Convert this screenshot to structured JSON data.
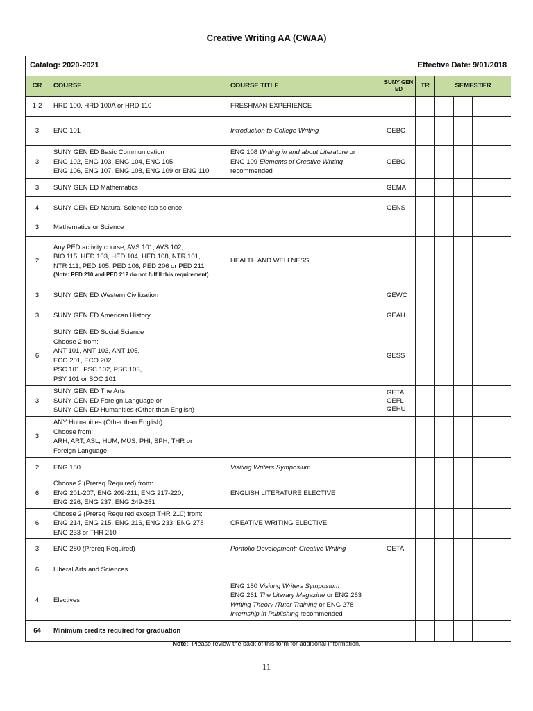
{
  "title": "Creative Writing AA (CWAA)",
  "catalog": "Catalog: 2020-2021",
  "effective_date": "Effective Date: 9/01/2018",
  "header_color": "#c5dba1",
  "columns": {
    "cr": "CR",
    "course": "COURSE",
    "course_title": "COURSE TITLE",
    "gen_ed": "SUNY GEN ED",
    "tr": "TR",
    "semester": "SEMESTER"
  },
  "rows": [
    {
      "cr": "1-2",
      "course": [
        "HRD 100, HRD 100A or HRD 110"
      ],
      "title": [
        [
          {
            "t": "FRESHMAN EXPERIENCE"
          }
        ]
      ],
      "gen_ed": []
    },
    {
      "cr": "3",
      "course": [
        "ENG 101"
      ],
      "title": [
        [
          {
            "t": "Introduction to College Writing",
            "i": true
          }
        ]
      ],
      "gen_ed": [
        "GEBC"
      ]
    },
    {
      "cr": "3",
      "course": [
        "SUNY GEN ED Basic Communication",
        "ENG 102, ENG 103, ENG 104, ENG 105,",
        "ENG 106, ENG 107, ENG 108, ENG 109 or ENG 110"
      ],
      "title": [
        [
          {
            "t": "ENG 108 "
          },
          {
            "t": "Writing in and about Literature",
            "i": true
          },
          {
            "t": " or"
          }
        ],
        [
          {
            "t": "ENG 109 "
          },
          {
            "t": "Elements of Creative Writing",
            "i": true
          }
        ],
        [
          {
            "t": "recommended"
          }
        ]
      ],
      "gen_ed": [
        "GEBC"
      ]
    },
    {
      "cr": "3",
      "course": [
        "SUNY GEN ED Mathematics"
      ],
      "title": [],
      "gen_ed": [
        "GEMA"
      ]
    },
    {
      "cr": "4",
      "course": [
        "SUNY GEN ED Natural Science lab science"
      ],
      "title": [],
      "gen_ed": [
        "GENS"
      ]
    },
    {
      "cr": "3",
      "course": [
        "Mathematics or Science"
      ],
      "title": [],
      "gen_ed": []
    },
    {
      "cr": "2",
      "course": [
        "Any PED activity course, AVS 101, AVS 102,",
        "BIO 115, HED 103, HED 104, HED 108, NTR 101,",
        "NTR 111, PED 105, PED 106, PED 206 or PED 211"
      ],
      "course_note": "(Note: PED 210 and PED 212 do not fulfill this requirement)",
      "title": [
        [
          {
            "t": "HEALTH AND WELLNESS"
          }
        ]
      ],
      "gen_ed": []
    },
    {
      "cr": "3",
      "course": [
        "SUNY GEN ED Western Civilization"
      ],
      "title": [],
      "gen_ed": [
        "GEWC"
      ]
    },
    {
      "cr": "3",
      "course": [
        "SUNY GEN ED American History"
      ],
      "title": [],
      "gen_ed": [
        "GEAH"
      ]
    },
    {
      "cr": "6",
      "course": [
        "SUNY GEN ED Social Science",
        "Choose 2 from:",
        "ANT 101, ANT 103, ANT 105,",
        "ECO 201, ECO 202,",
        "PSC 101, PSC 102, PSC 103,",
        "PSY 101 or SOC 101"
      ],
      "title": [],
      "gen_ed": [
        "GESS"
      ]
    },
    {
      "cr": "3",
      "course": [
        "SUNY GEN ED The Arts,",
        "SUNY GEN ED Foreign Language or",
        "SUNY GEN ED Humanities (Other than English)"
      ],
      "title": [],
      "gen_ed": [
        "GETA",
        "GEFL",
        "GEHU"
      ]
    },
    {
      "cr": "3",
      "course": [
        "ANY Humanities (Other than English)",
        "Choose from:",
        "ARH, ART, ASL, HUM, MUS, PHI, SPH, THR or",
        "Foreign Language"
      ],
      "title": [],
      "gen_ed": []
    },
    {
      "cr": "2",
      "course": [
        "ENG 180"
      ],
      "title": [
        [
          {
            "t": "Visiting Writers Symposium",
            "i": true
          }
        ]
      ],
      "gen_ed": []
    },
    {
      "cr": "6",
      "course": [
        "Choose 2 (Prereq Required) from:",
        "ENG 201-207, ENG 209-211, ENG 217-220,",
        "ENG 226, ENG 237, ENG 249-251"
      ],
      "title": [
        [
          {
            "t": "ENGLISH LITERATURE ELECTIVE"
          }
        ]
      ],
      "gen_ed": []
    },
    {
      "cr": "6",
      "course": [
        "Choose 2 (Prereq Required except THR 210) from:",
        "ENG 214, ENG 215, ENG 216, ENG 233, ENG 278",
        "ENG 233 or THR 210"
      ],
      "title": [
        [
          {
            "t": "CREATIVE WRITING ELECTIVE"
          }
        ]
      ],
      "gen_ed": []
    },
    {
      "cr": "3",
      "course": [
        "ENG 280 (Prereq Required)"
      ],
      "title": [
        [
          {
            "t": "Portfolio Development: Creative Writing",
            "i": true
          }
        ]
      ],
      "gen_ed": [
        "GETA"
      ]
    },
    {
      "cr": "6",
      "course": [
        "Liberal Arts and Sciences"
      ],
      "title": [],
      "gen_ed": []
    },
    {
      "cr": "4",
      "course": [
        "Electives"
      ],
      "title": [
        [
          {
            "t": "ENG 180 "
          },
          {
            "t": "Visiting Writers Symposium",
            "i": true
          }
        ],
        [
          {
            "t": "ENG 261 "
          },
          {
            "t": "The Literary Magazine",
            "i": true
          },
          {
            "t": " or ENG 263"
          }
        ],
        [
          {
            "t": "Writing Theory /Tutor Training",
            "i": true
          },
          {
            "t": " or ENG 278"
          }
        ],
        [
          {
            "t": "Internship in Publishing",
            "i": true
          },
          {
            "t": " recommended"
          }
        ]
      ],
      "gen_ed": []
    }
  ],
  "total": {
    "cr": "64",
    "label": "Minimum credits required for graduation"
  },
  "note": {
    "label": "Note:",
    "text": "  Please review the back of this form for additional information."
  },
  "page_number": "11"
}
